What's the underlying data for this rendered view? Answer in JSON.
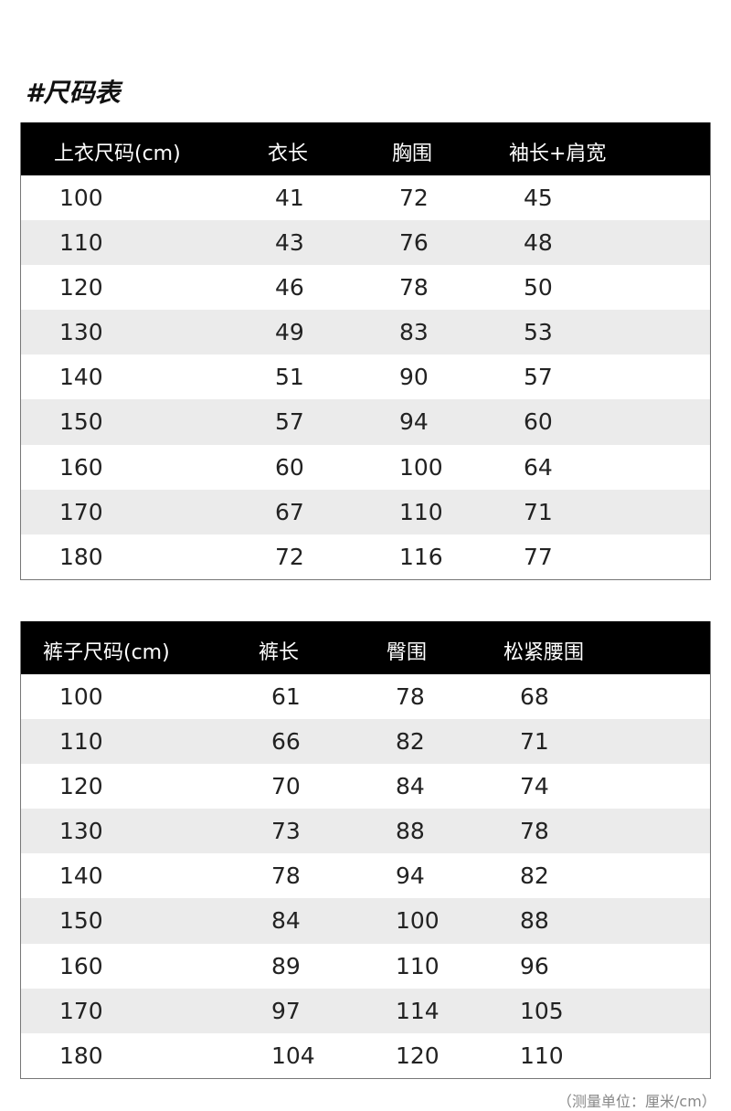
{
  "title": "#尺码表",
  "top_table": {
    "headers": [
      "上衣尺码(cm)",
      "衣长",
      "胸围",
      "袖长+肩宽"
    ],
    "rows": [
      [
        "100",
        "41",
        "72",
        "45"
      ],
      [
        "110",
        "43",
        "76",
        "48"
      ],
      [
        "120",
        "46",
        "78",
        "50"
      ],
      [
        "130",
        "49",
        "83",
        "53"
      ],
      [
        "140",
        "51",
        "90",
        "57"
      ],
      [
        "150",
        "57",
        "94",
        "60"
      ],
      [
        "160",
        "60",
        "100",
        "64"
      ],
      [
        "170",
        "67",
        "110",
        "71"
      ],
      [
        "180",
        "72",
        "116",
        "77"
      ]
    ]
  },
  "pants_table": {
    "headers": [
      "裤子尺码(cm)",
      "裤长",
      "臀围",
      "松紧腰围"
    ],
    "rows": [
      [
        "100",
        "61",
        "78",
        "68"
      ],
      [
        "110",
        "66",
        "82",
        "71"
      ],
      [
        "120",
        "70",
        "84",
        "74"
      ],
      [
        "130",
        "73",
        "88",
        "78"
      ],
      [
        "140",
        "78",
        "94",
        "82"
      ],
      [
        "150",
        "84",
        "100",
        "88"
      ],
      [
        "160",
        "89",
        "110",
        "96"
      ],
      [
        "170",
        "97",
        "114",
        "105"
      ],
      [
        "180",
        "104",
        "120",
        "110"
      ]
    ]
  },
  "note": "（测量单位：厘米/cm）"
}
